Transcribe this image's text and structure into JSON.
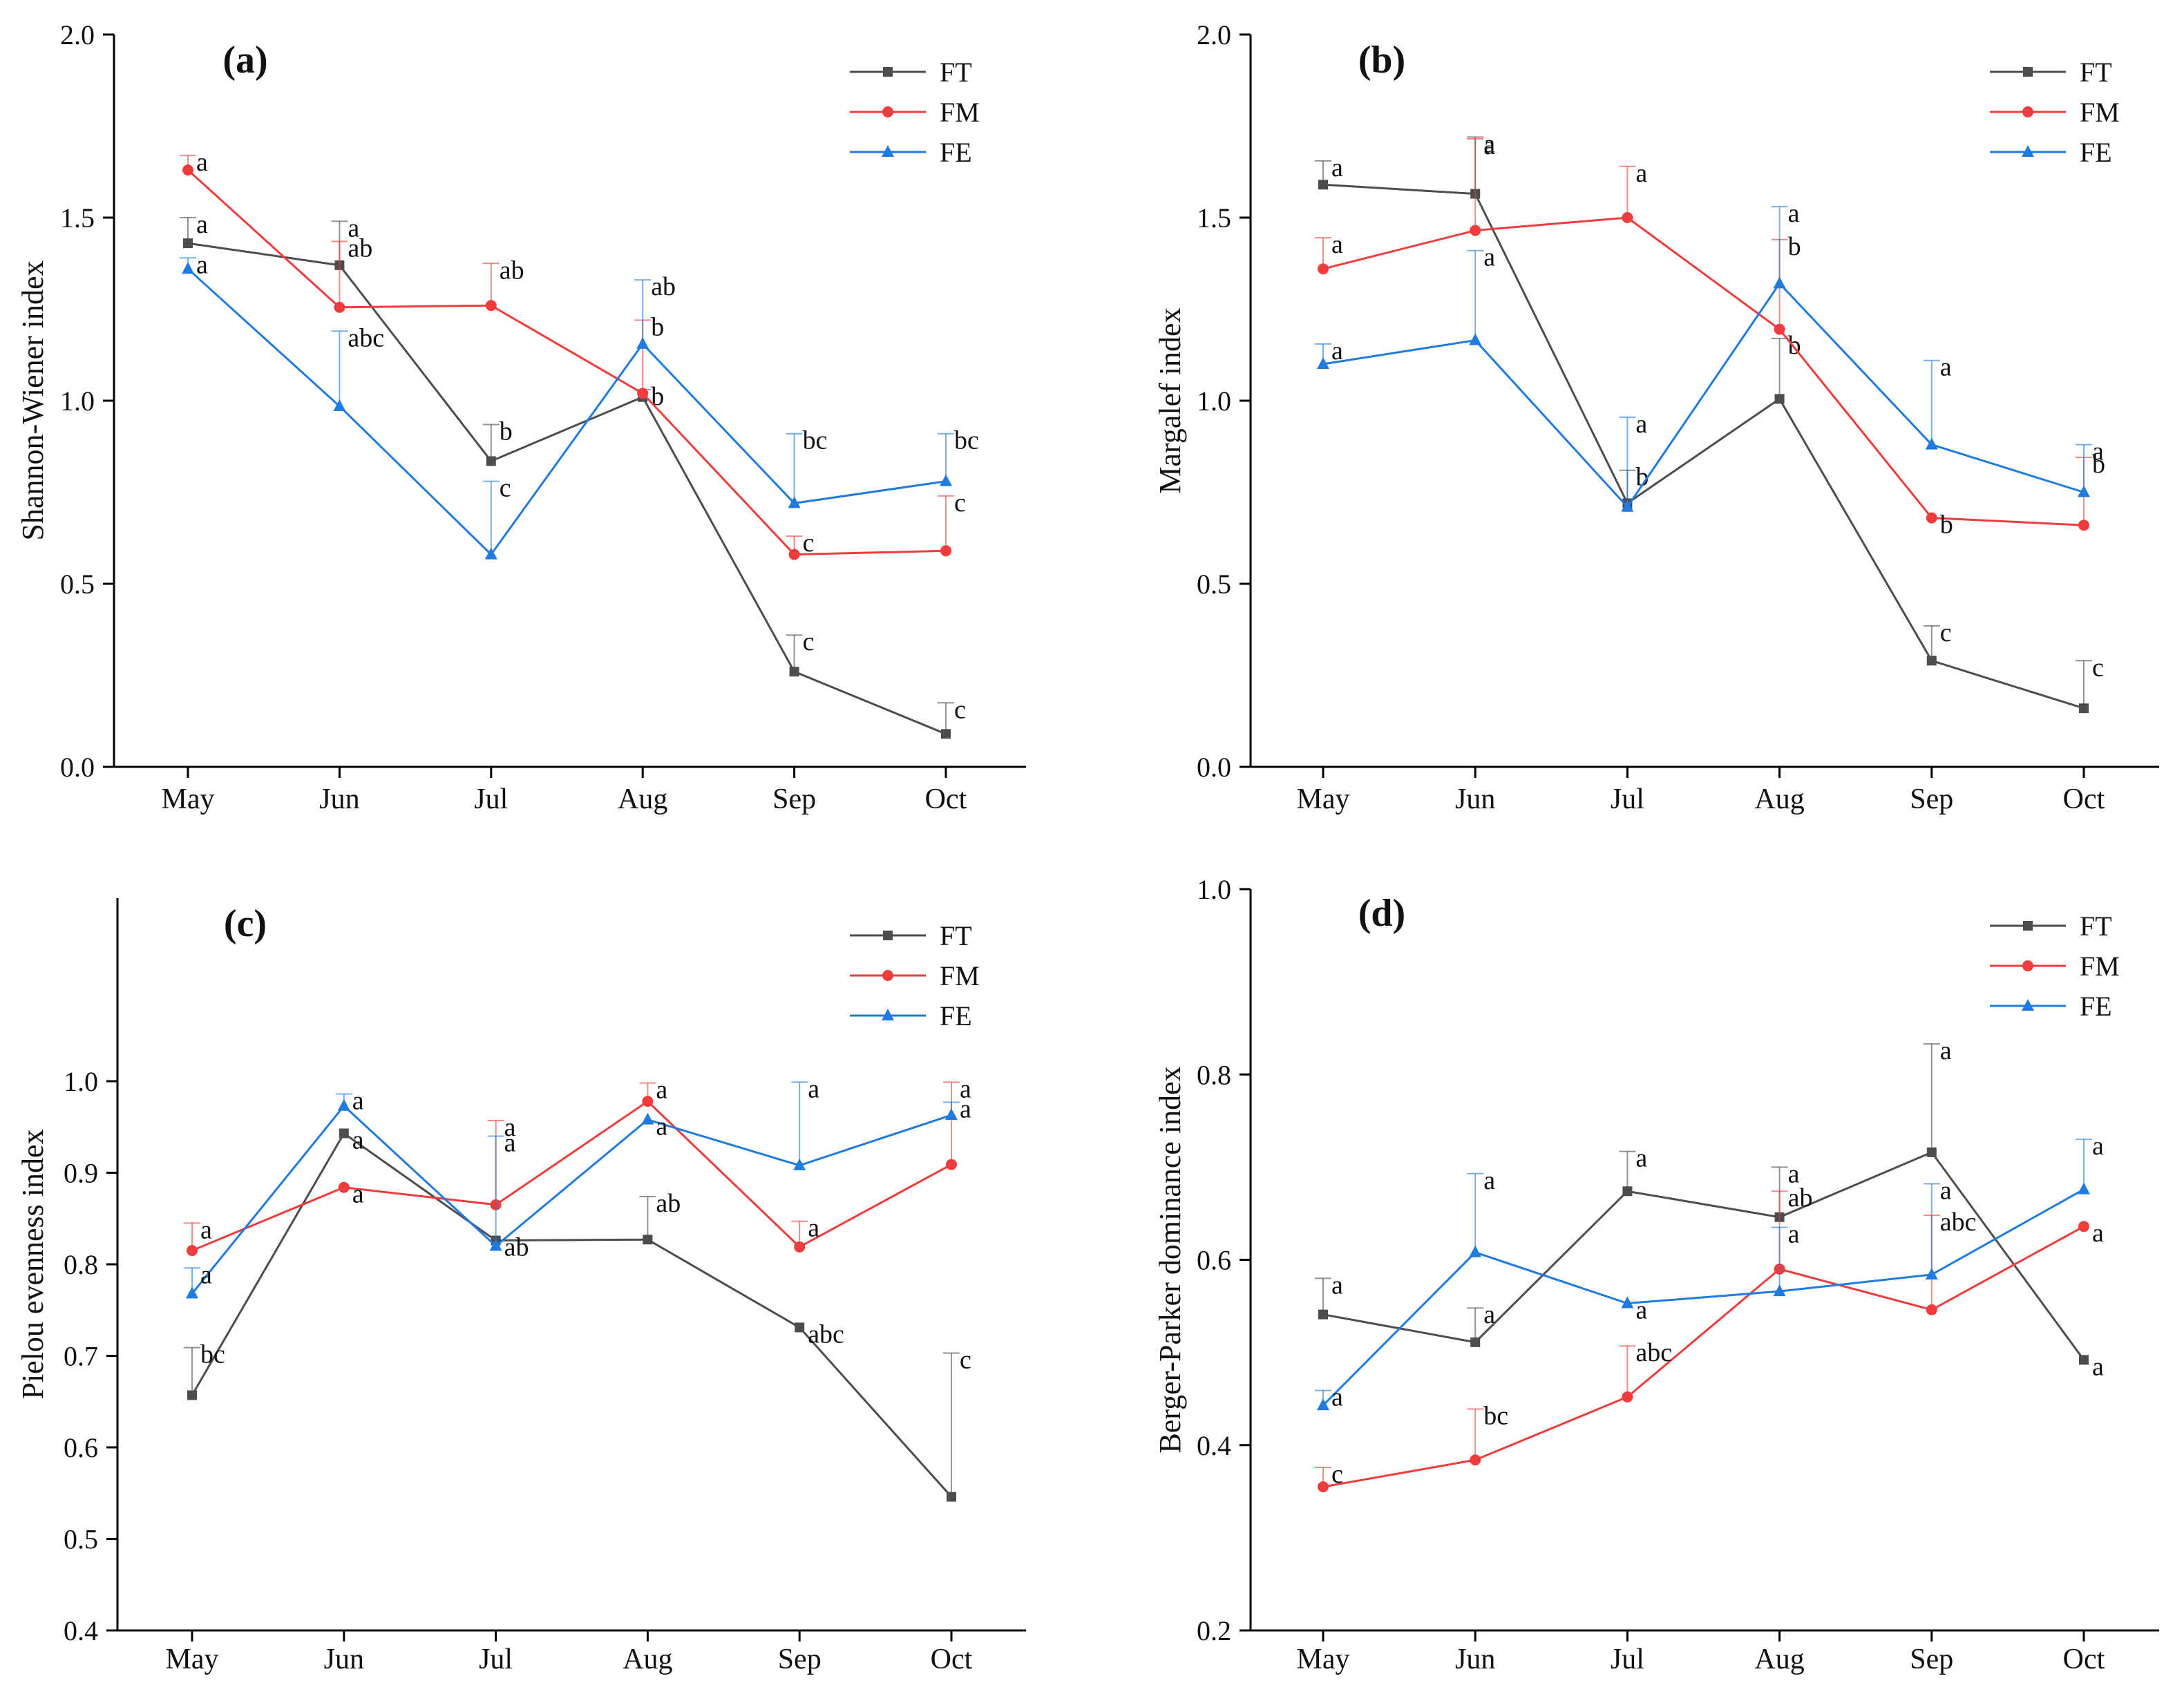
{
  "figure": {
    "months": [
      "May",
      "Jun",
      "Jul",
      "Aug",
      "Sep",
      "Oct"
    ],
    "colors": {
      "FT": "#4d4d4d",
      "FM": "#f03c3c",
      "FE": "#1f7be0"
    },
    "markers": {
      "FT": "square",
      "FM": "circle",
      "FE": "triangle"
    }
  },
  "chart_data": [
    {
      "type": "line",
      "panel": "(a)",
      "ylabel": "Shannon-Wiener index",
      "xlabel": "",
      "categories": [
        "May",
        "Jun",
        "Jul",
        "Aug",
        "Sep",
        "Oct"
      ],
      "ylim": [
        0.0,
        2.0
      ],
      "yticks": [
        0.0,
        0.5,
        1.0,
        1.5,
        2.0
      ],
      "ytick_labels": [
        "0.0",
        "0.5",
        "1.0",
        "1.5",
        "2.0"
      ],
      "legend": [
        "FT",
        "FM",
        "FE"
      ],
      "legend_position": "top-right",
      "series": [
        {
          "name": "FT",
          "values": [
            1.43,
            1.37,
            0.835,
            1.01,
            0.26,
            0.09
          ],
          "err": [
            0.07,
            0.12,
            0.1,
            0.02,
            0.1,
            0.085
          ],
          "labels": [
            "a",
            "a",
            "b",
            "b",
            "c",
            "c"
          ]
        },
        {
          "name": "FM",
          "values": [
            1.63,
            1.255,
            1.26,
            1.02,
            0.58,
            0.59
          ],
          "err": [
            0.04,
            0.18,
            0.115,
            0.2,
            0.05,
            0.15
          ],
          "labels": [
            "a",
            "ab",
            "ab",
            "b",
            "c",
            "c"
          ]
        },
        {
          "name": "FE",
          "values": [
            1.36,
            0.985,
            0.58,
            1.155,
            0.72,
            0.78
          ],
          "err": [
            0.03,
            0.205,
            0.2,
            0.175,
            0.19,
            0.13
          ],
          "labels": [
            "a",
            "abc",
            "c",
            "ab",
            "bc",
            "bc"
          ]
        }
      ]
    },
    {
      "type": "line",
      "panel": "(b)",
      "ylabel": "Margalef index",
      "xlabel": "",
      "categories": [
        "May",
        "Jun",
        "Jul",
        "Aug",
        "Sep",
        "Oct"
      ],
      "ylim": [
        0.0,
        2.0
      ],
      "yticks": [
        0.0,
        0.5,
        1.0,
        1.5,
        2.0
      ],
      "ytick_labels": [
        "0.0",
        "0.5",
        "1.0",
        "1.5",
        "2.0"
      ],
      "legend": [
        "FT",
        "FM",
        "FE"
      ],
      "legend_position": "top-right",
      "series": [
        {
          "name": "FT",
          "values": [
            1.59,
            1.565,
            0.72,
            1.005,
            0.29,
            0.16
          ],
          "err": [
            0.065,
            0.155,
            0.09,
            0.165,
            0.095,
            0.13
          ],
          "labels": [
            "a",
            "a",
            "b",
            "b",
            "c",
            "c"
          ]
        },
        {
          "name": "FM",
          "values": [
            1.36,
            1.465,
            1.5,
            1.195,
            0.68,
            0.66
          ],
          "err": [
            0.085,
            0.25,
            0.14,
            0.245,
            0.0,
            0.185
          ],
          "labels": [
            "a",
            "a",
            "a",
            "b",
            "b",
            "b"
          ]
        },
        {
          "name": "FE",
          "values": [
            1.1,
            1.165,
            0.71,
            1.32,
            0.88,
            0.75
          ],
          "err": [
            0.055,
            0.245,
            0.245,
            0.21,
            0.23,
            0.13
          ],
          "labels": [
            "a",
            "a",
            "a",
            "a",
            "a",
            "a"
          ]
        }
      ]
    },
    {
      "type": "line",
      "panel": "(c)",
      "ylabel": "Pielou evenness index",
      "xlabel": "",
      "categories": [
        "May",
        "Jun",
        "Jul",
        "Aug",
        "Sep",
        "Oct"
      ],
      "ylim": [
        0.4,
        1.2
      ],
      "yticks": [
        0.4,
        0.5,
        0.6,
        0.7,
        0.8,
        0.9,
        1.0
      ],
      "ytick_labels": [
        "0.4",
        "0.5",
        "0.6",
        "0.7",
        "0.8",
        "0.9",
        "1.0"
      ],
      "legend": [
        "FT",
        "FM",
        "FE"
      ],
      "legend_position": "top-right",
      "series": [
        {
          "name": "FT",
          "values": [
            0.657,
            0.943,
            0.826,
            0.827,
            0.731,
            0.546
          ],
          "err": [
            0.052,
            0.0,
            0.0,
            0.047,
            0.0,
            0.157
          ],
          "labels": [
            "bc",
            "a",
            "ab",
            "ab",
            "abc",
            "c"
          ]
        },
        {
          "name": "FM",
          "values": [
            0.815,
            0.884,
            0.865,
            0.978,
            0.819,
            0.909
          ],
          "err": [
            0.03,
            0.0,
            0.092,
            0.02,
            0.028,
            0.09
          ],
          "labels": [
            "a",
            "a",
            "a",
            "a",
            "a",
            "a"
          ]
        },
        {
          "name": "FE",
          "values": [
            0.768,
            0.973,
            0.82,
            0.958,
            0.908,
            0.963
          ],
          "err": [
            0.028,
            0.013,
            0.12,
            0.0,
            0.091,
            0.014
          ],
          "labels": [
            "a",
            "a",
            "a",
            "a",
            "a",
            "a"
          ]
        }
      ]
    },
    {
      "type": "line",
      "panel": "(d)",
      "ylabel": "Berger-Parker dominance index",
      "xlabel": "",
      "categories": [
        "May",
        "Jun",
        "Jul",
        "Aug",
        "Sep",
        "Oct"
      ],
      "ylim": [
        0.2,
        1.0
      ],
      "yticks": [
        0.2,
        0.4,
        0.6,
        0.8,
        1.0
      ],
      "ytick_labels": [
        "0.2",
        "0.4",
        "0.6",
        "0.8",
        "1.0"
      ],
      "legend": [
        "FT",
        "FM",
        "FE"
      ],
      "legend_position": "top-right",
      "series": [
        {
          "name": "FT",
          "values": [
            0.541,
            0.511,
            0.674,
            0.646,
            0.716,
            0.492
          ],
          "err": [
            0.039,
            0.037,
            0.043,
            0.054,
            0.117,
            0.0
          ],
          "labels": [
            "a",
            "a",
            "a",
            "a",
            "a",
            "a"
          ]
        },
        {
          "name": "FM",
          "values": [
            0.355,
            0.384,
            0.452,
            0.59,
            0.546,
            0.636
          ],
          "err": [
            0.021,
            0.055,
            0.055,
            0.084,
            0.102,
            0.0
          ],
          "labels": [
            "c",
            "bc",
            "abc",
            "ab",
            "abc",
            "a"
          ]
        },
        {
          "name": "FE",
          "values": [
            0.443,
            0.608,
            0.553,
            0.566,
            0.584,
            0.676
          ],
          "err": [
            0.016,
            0.085,
            0.0,
            0.069,
            0.098,
            0.054
          ],
          "labels": [
            "a",
            "a",
            "a",
            "a",
            "a",
            "a"
          ]
        }
      ]
    }
  ]
}
